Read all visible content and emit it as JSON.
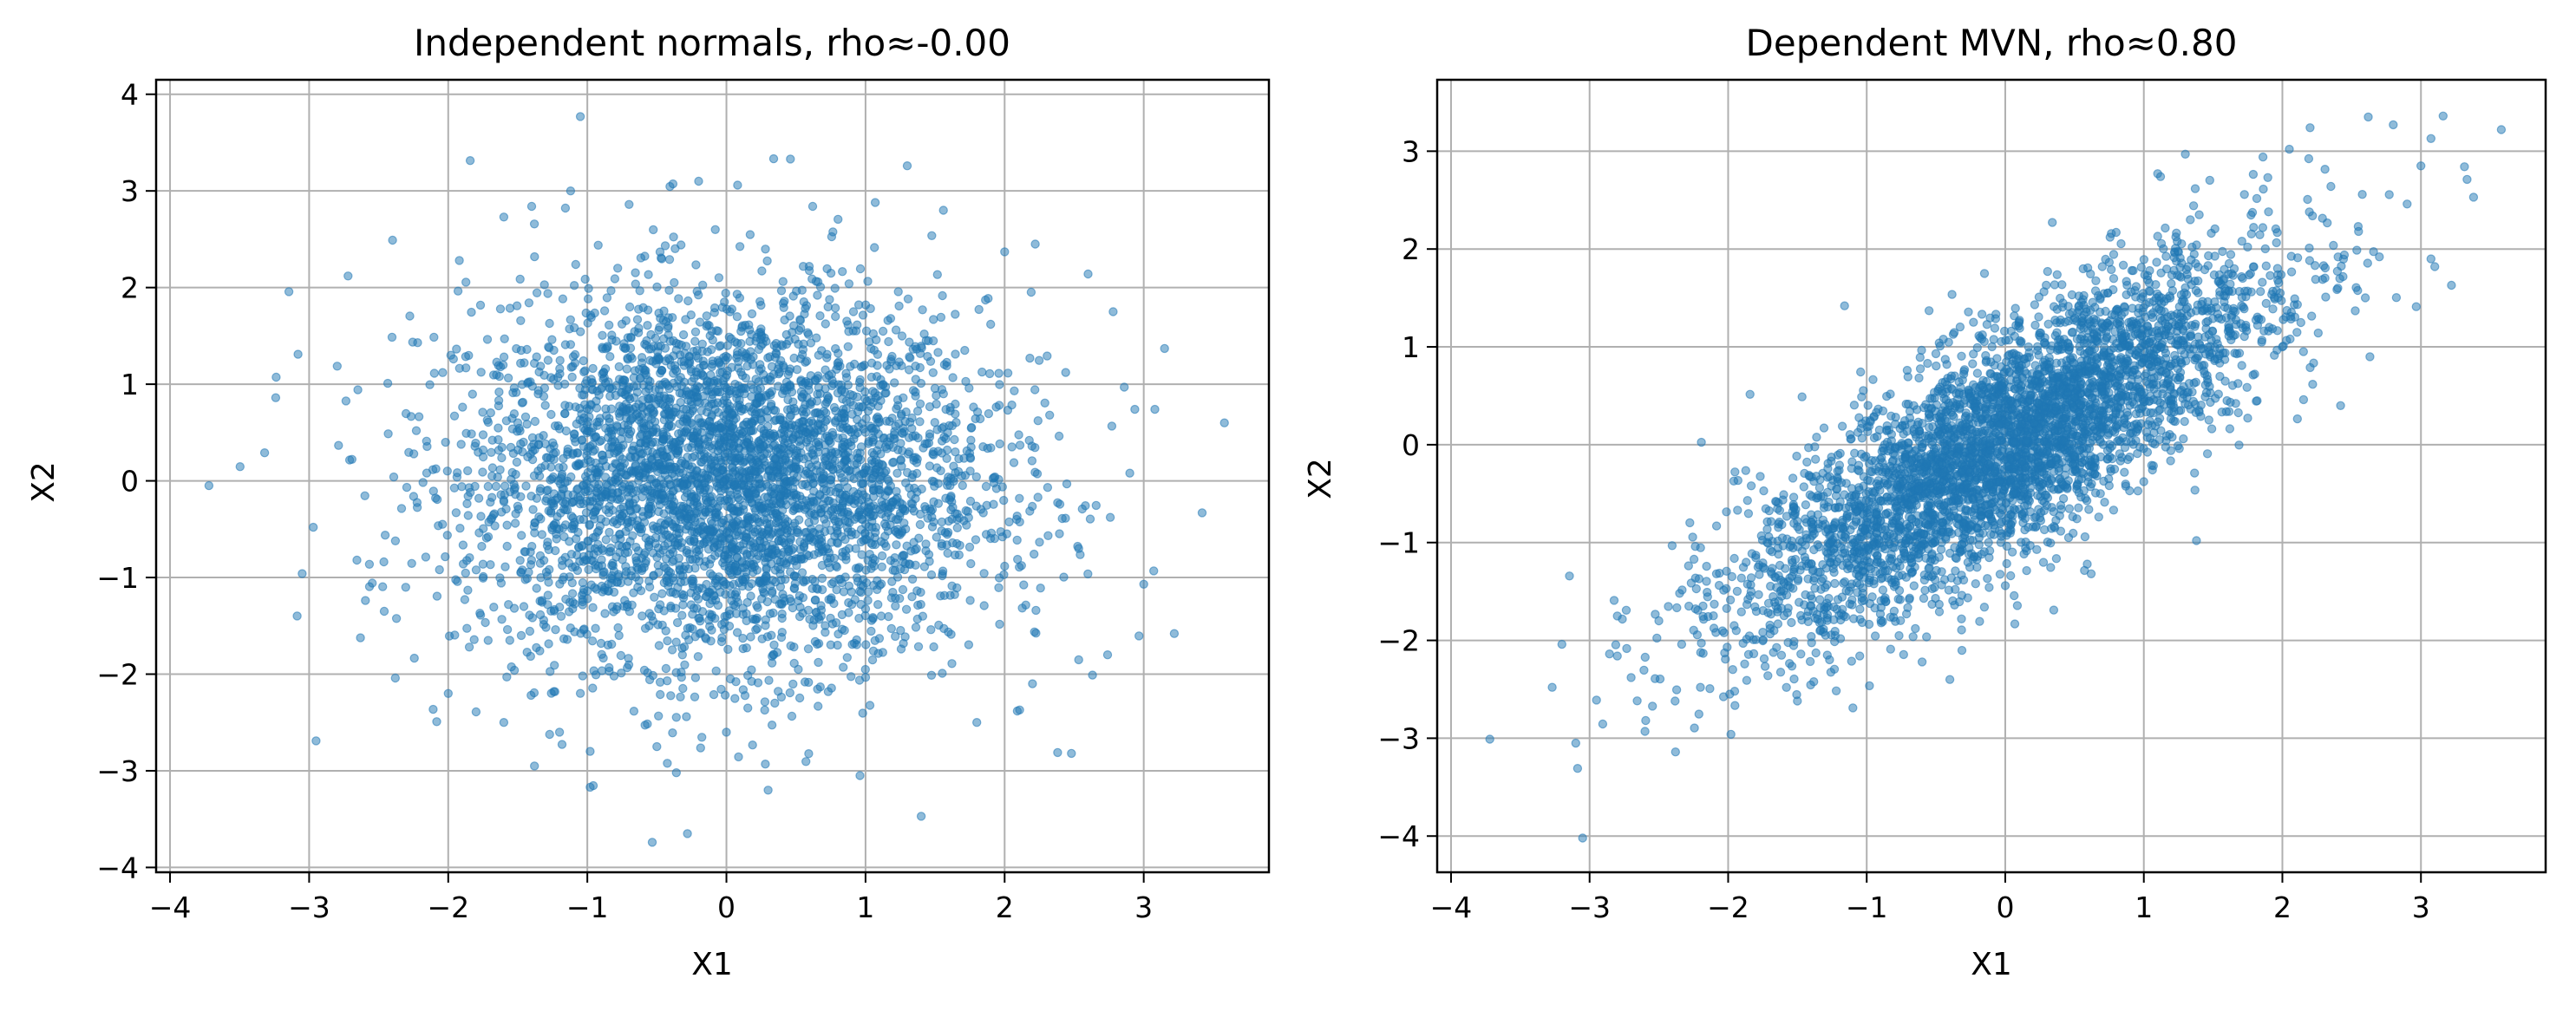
{
  "figure": {
    "panel_count": 2
  },
  "chart_data": [
    {
      "type": "scatter",
      "title": "Independent normals, rho≈-0.00",
      "xlabel": "X1",
      "ylabel": "X2",
      "xlim": [
        -4.1,
        3.9
      ],
      "ylim": [
        -4.05,
        4.15
      ],
      "xticks": [
        -4,
        -3,
        -2,
        -1,
        0,
        1,
        2,
        3
      ],
      "yticks": [
        -4,
        -3,
        -2,
        -1,
        0,
        1,
        2,
        3,
        4
      ],
      "xtick_labels": [
        "−4",
        "−3",
        "−2",
        "−1",
        "0",
        "1",
        "2",
        "3"
      ],
      "ytick_labels": [
        "−4",
        "−3",
        "−2",
        "−1",
        "0",
        "1",
        "2",
        "3",
        "4"
      ],
      "grid": true,
      "legend": "none",
      "color": "#1f77b4",
      "marker_alpha": 0.5,
      "correlation": 0.0,
      "points": [
        [
          -3.72,
          -0.05
        ],
        [
          -3.32,
          0.29
        ],
        [
          -3.24,
          0.86
        ],
        [
          -3.08,
          1.31
        ],
        [
          -3.05,
          -0.96
        ],
        [
          -2.97,
          -0.48
        ],
        [
          -2.95,
          -2.69
        ],
        [
          -2.72,
          2.12
        ],
        [
          -2.4,
          2.49
        ],
        [
          -2.46,
          -1.35
        ],
        [
          -2.38,
          -2.04
        ],
        [
          -2.22,
          1.43
        ],
        [
          -2.0,
          -2.2
        ],
        [
          -1.92,
          2.28
        ],
        [
          -1.8,
          -2.39
        ],
        [
          -1.6,
          2.73
        ],
        [
          -1.6,
          -2.5
        ],
        [
          -1.4,
          2.84
        ],
        [
          -1.38,
          -2.95
        ],
        [
          -1.2,
          -2.6
        ],
        [
          -1.12,
          3.0
        ],
        [
          -1.05,
          3.77
        ],
        [
          -0.98,
          -3.17
        ],
        [
          -0.7,
          2.86
        ],
        [
          -0.5,
          -2.75
        ],
        [
          -0.36,
          -3.02
        ],
        [
          -0.28,
          -3.65
        ],
        [
          -0.2,
          3.1
        ],
        [
          -0.08,
          2.6
        ],
        [
          0.0,
          -2.6
        ],
        [
          0.08,
          3.06
        ],
        [
          0.3,
          -3.2
        ],
        [
          0.28,
          -2.93
        ],
        [
          0.46,
          3.33
        ],
        [
          0.62,
          2.84
        ],
        [
          0.96,
          -3.05
        ],
        [
          1.07,
          2.88
        ],
        [
          1.3,
          3.26
        ],
        [
          1.4,
          -3.47
        ],
        [
          1.56,
          2.8
        ],
        [
          1.8,
          -2.5
        ],
        [
          2.0,
          2.37
        ],
        [
          2.22,
          2.45
        ],
        [
          2.2,
          -2.1
        ],
        [
          2.48,
          -2.82
        ],
        [
          2.6,
          2.14
        ],
        [
          2.78,
          1.75
        ],
        [
          3.08,
          0.74
        ],
        [
          3.0,
          -1.07
        ],
        [
          3.15,
          1.37
        ],
        [
          3.22,
          -1.58
        ],
        [
          3.42,
          -0.33
        ],
        [
          3.58,
          0.6
        ],
        [
          2.86,
          0.97
        ],
        [
          2.9,
          0.08
        ],
        [
          2.74,
          -1.8
        ]
      ]
    },
    {
      "type": "scatter",
      "title": "Dependent MVN, rho≈0.80",
      "xlabel": "X1",
      "ylabel": "X2",
      "xlim": [
        -4.1,
        3.9
      ],
      "ylim": [
        -4.37,
        3.73
      ],
      "xticks": [
        -4,
        -3,
        -2,
        -1,
        0,
        1,
        2,
        3
      ],
      "yticks": [
        -4,
        -3,
        -2,
        -1,
        0,
        1,
        2,
        3
      ],
      "xtick_labels": [
        "−4",
        "−3",
        "−2",
        "−1",
        "0",
        "1",
        "2",
        "3"
      ],
      "ytick_labels": [
        "−4",
        "−3",
        "−2",
        "−1",
        "0",
        "1",
        "2",
        "3"
      ],
      "grid": true,
      "legend": "none",
      "color": "#1f77b4",
      "marker_alpha": 0.5,
      "correlation": 0.8,
      "points": [
        [
          -3.72,
          -3.01
        ],
        [
          -3.05,
          -4.02
        ],
        [
          -3.1,
          -3.05
        ],
        [
          -3.27,
          -2.48
        ],
        [
          -3.2,
          -2.04
        ],
        [
          -2.95,
          -2.61
        ],
        [
          -2.8,
          -2.16
        ],
        [
          -2.6,
          -2.93
        ],
        [
          -2.38,
          -3.14
        ],
        [
          -2.2,
          -2.48
        ],
        [
          -2.1,
          -1.63
        ],
        [
          -1.98,
          -2.96
        ],
        [
          -1.86,
          -0.57
        ],
        [
          -1.8,
          -1.13
        ],
        [
          -1.5,
          -2.62
        ],
        [
          -1.4,
          -1.96
        ],
        [
          -1.16,
          1.42
        ],
        [
          -1.1,
          -2.69
        ],
        [
          -0.6,
          -2.22
        ],
        [
          -0.55,
          1.37
        ],
        [
          -0.4,
          -2.4
        ],
        [
          -0.3,
          0.72
        ],
        [
          -0.15,
          1.75
        ],
        [
          0.0,
          -1.44
        ],
        [
          0.35,
          -1.69
        ],
        [
          0.62,
          -1.32
        ],
        [
          0.8,
          2.17
        ],
        [
          1.1,
          2.77
        ],
        [
          1.3,
          2.97
        ],
        [
          1.1,
          2.13
        ],
        [
          1.38,
          -0.98
        ],
        [
          1.6,
          0.45
        ],
        [
          1.86,
          2.94
        ],
        [
          1.9,
          2.38
        ],
        [
          2.0,
          1.0
        ],
        [
          2.05,
          3.02
        ],
        [
          2.2,
          3.24
        ],
        [
          2.35,
          2.64
        ],
        [
          2.4,
          1.6
        ],
        [
          2.42,
          0.4
        ],
        [
          2.62,
          3.35
        ],
        [
          2.8,
          3.27
        ],
        [
          2.9,
          2.46
        ],
        [
          3.0,
          2.85
        ],
        [
          3.1,
          1.82
        ],
        [
          3.16,
          3.36
        ],
        [
          3.22,
          1.63
        ],
        [
          3.38,
          2.53
        ],
        [
          3.58,
          3.22
        ],
        [
          2.55,
          2.18
        ],
        [
          2.7,
          1.92
        ],
        [
          1.4,
          2.35
        ],
        [
          -2.5,
          -1.8
        ],
        [
          -2.7,
          -2.38
        ],
        [
          -1.3,
          -1.46
        ],
        [
          0.7,
          1.82
        ]
      ]
    }
  ]
}
